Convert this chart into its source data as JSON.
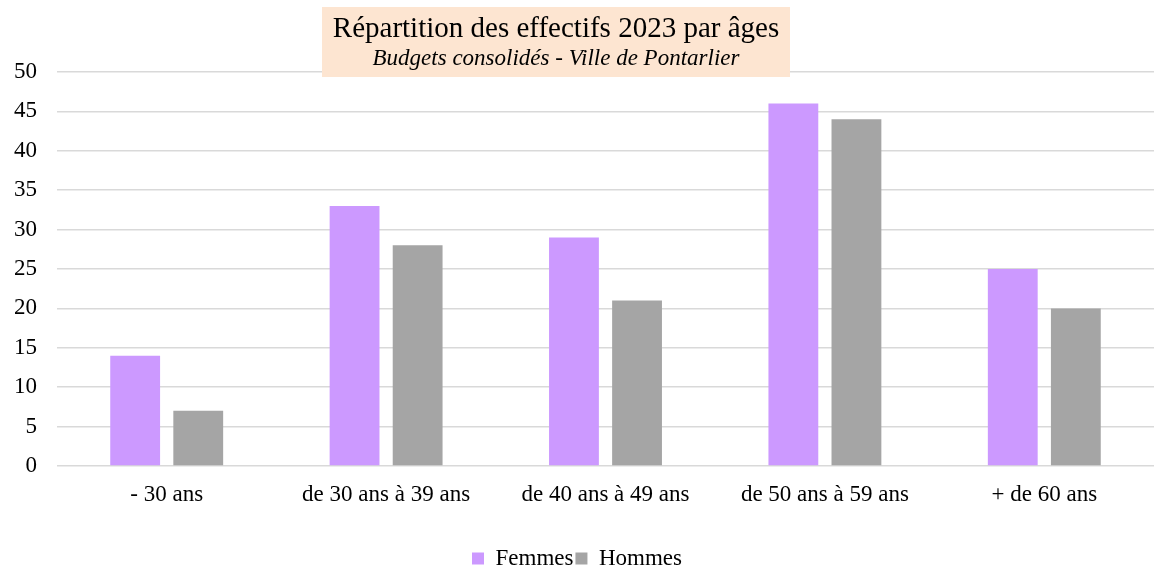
{
  "chart_data": {
    "type": "bar",
    "title": "Répartition des effectifs 2023 par âges",
    "subtitle": "Budgets consolidés - Ville de Pontarlier",
    "categories": [
      "- 30 ans",
      "de 30 ans à 39 ans",
      "de 40 ans à 49 ans",
      "de 50 ans à 59 ans",
      "+ de 60 ans"
    ],
    "series": [
      {
        "name": "Femmes",
        "color": "#cc99ff",
        "values": [
          14,
          33,
          29,
          46,
          25
        ]
      },
      {
        "name": "Hommes",
        "color": "#a5a5a5",
        "values": [
          7,
          28,
          21,
          44,
          20
        ]
      }
    ],
    "ylim": [
      0,
      50
    ],
    "yticks": [
      0,
      5,
      10,
      15,
      20,
      25,
      30,
      35,
      40,
      45,
      50
    ],
    "grid": "y",
    "legend": "bottom"
  }
}
